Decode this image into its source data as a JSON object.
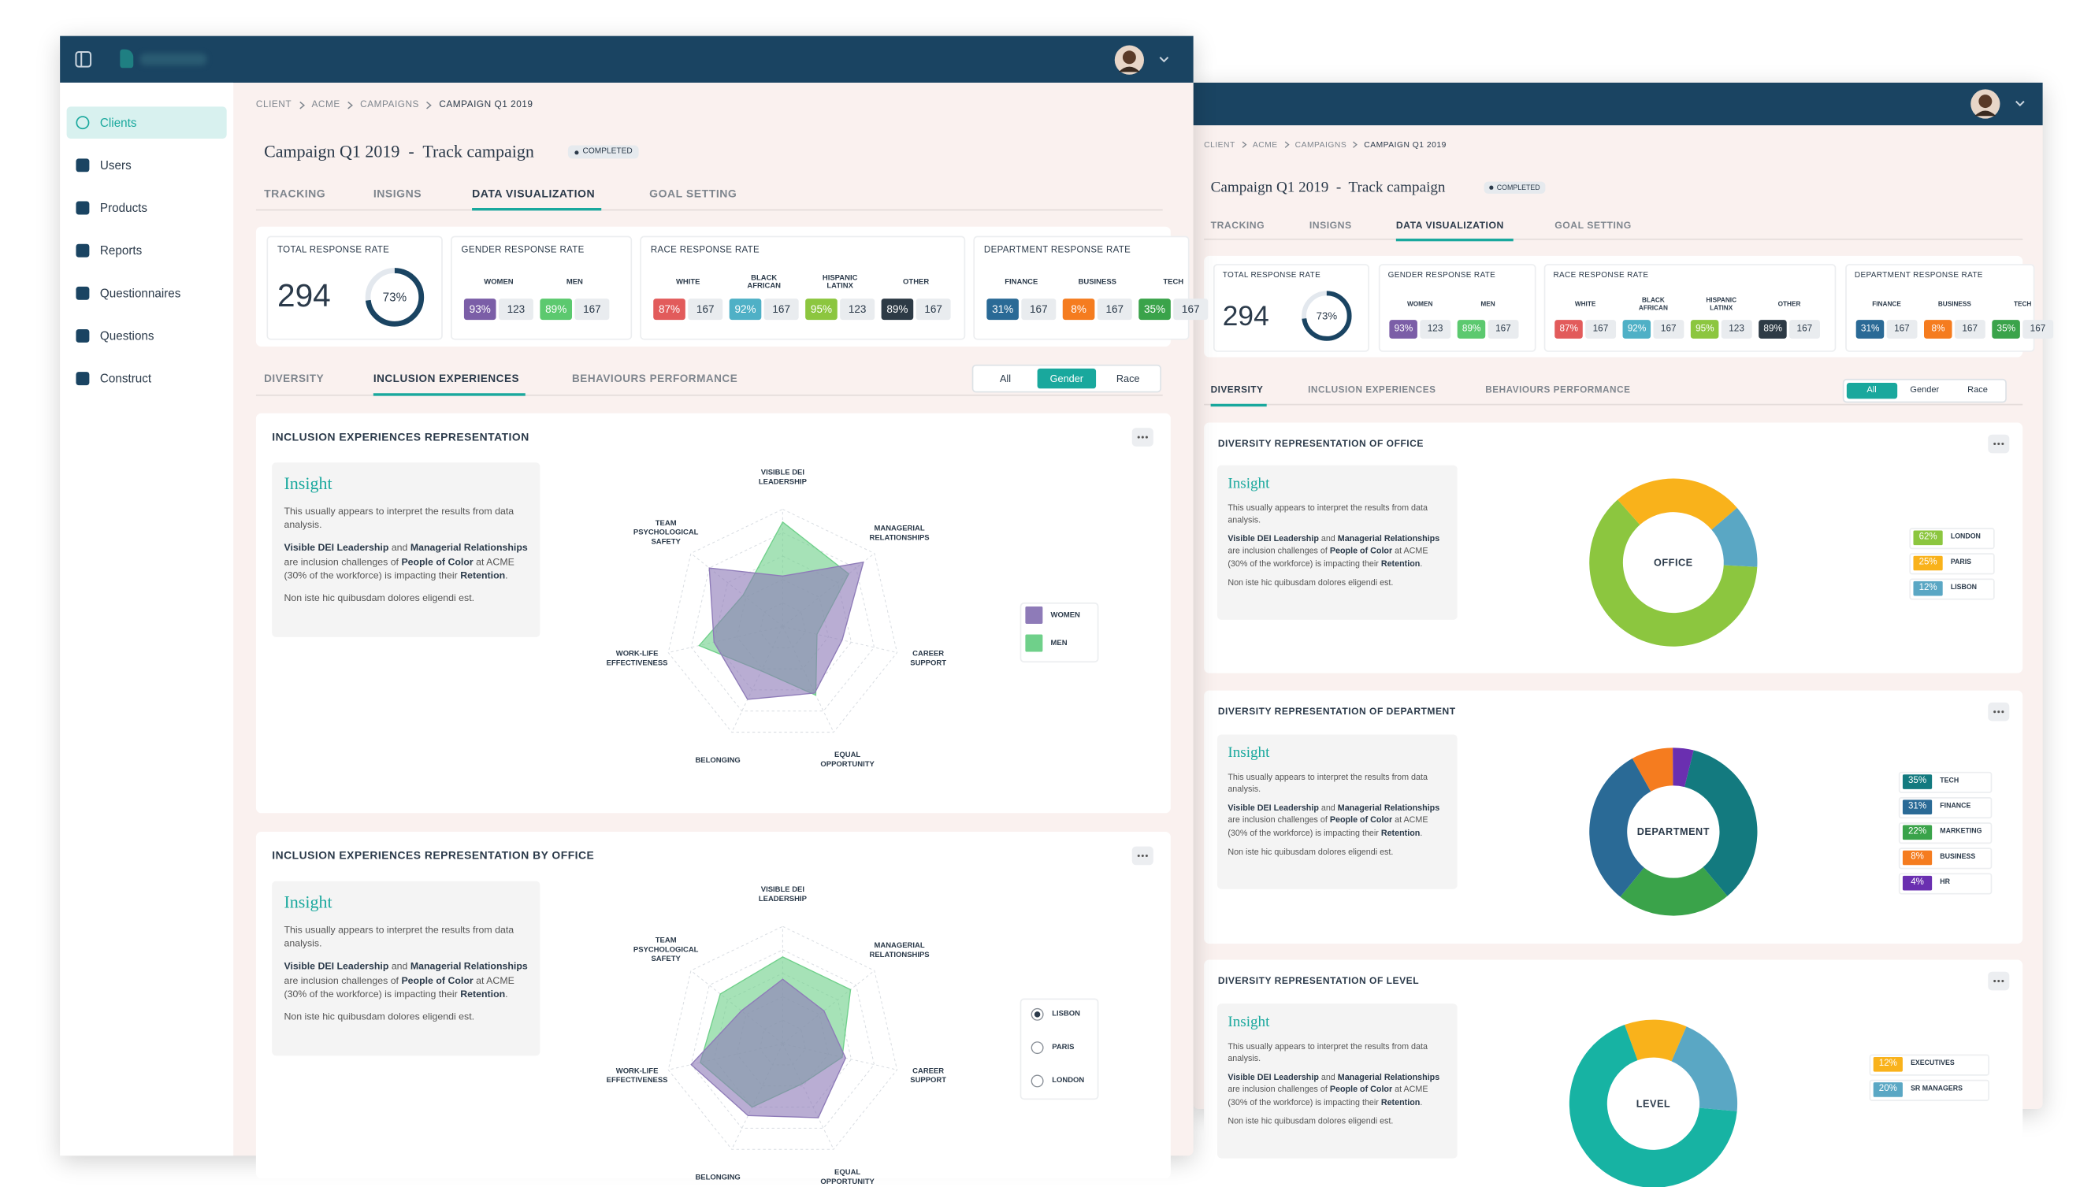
{
  "app": {
    "sidebar": [
      "Clients",
      "Users",
      "Products",
      "Reports",
      "Questionnaires",
      "Questions",
      "Construct"
    ],
    "breadcrumb": [
      "CLIENT",
      "ACME",
      "CAMPAIGNS",
      "CAMPAIGN Q1 2019"
    ],
    "campaign_title": "Campaign Q1 2019  -  Track campaign",
    "status": "COMPLETED",
    "tabs": [
      "TRACKING",
      "INSIGNS",
      "DATA VISUALIZATION",
      "GOAL SETTING"
    ],
    "subtabs": [
      "DIVERSITY",
      "INCLUSION EXPERIENCES",
      "BEHAVIOURS PERFORMANCE"
    ],
    "filters": [
      "All",
      "Gender",
      "Race"
    ],
    "stats": {
      "total": {
        "label": "TOTAL RESPONSE RATE",
        "count": 294,
        "rate": 73,
        "rate_label": "73%"
      },
      "groups": [
        {
          "label": "GENDER RESPONSE RATE",
          "items": [
            {
              "name": [
                "WOMEN"
              ],
              "rate": "93%",
              "count": 123,
              "color": "#7b5ea7"
            },
            {
              "name": [
                "MEN"
              ],
              "rate": "89%",
              "count": 167,
              "color": "#5cc96f"
            }
          ]
        },
        {
          "label": "RACE RESPONSE RATE",
          "items": [
            {
              "name": [
                "WHITE"
              ],
              "rate": "87%",
              "count": 167,
              "color": "#e25b5b"
            },
            {
              "name": [
                "BLACK",
                "AFRICAN"
              ],
              "rate": "92%",
              "count": 167,
              "color": "#4fb0c6"
            },
            {
              "name": [
                "HISPANIC",
                "LATINX"
              ],
              "rate": "95%",
              "count": 123,
              "color": "#8cc63f"
            },
            {
              "name": [
                "OTHER"
              ],
              "rate": "89%",
              "count": 167,
              "color": "#2d3a45"
            }
          ]
        },
        {
          "label": "DEPARTMENT RESPONSE RATE",
          "items": [
            {
              "name": [
                "FINANCE"
              ],
              "rate": "31%",
              "count": 167,
              "color": "#2a6a96"
            },
            {
              "name": [
                "BUSINESS"
              ],
              "rate": "8%",
              "count": 167,
              "color": "#f57c1f"
            },
            {
              "name": [
                "TECH"
              ],
              "rate": "35%",
              "count": 167,
              "color": "#3aa34a"
            }
          ]
        }
      ]
    },
    "insight": {
      "heading": "Insight",
      "intro": "This usually appears to interpret the results from data analysis.",
      "segments": [
        "Visible DEI Leadership",
        " and ",
        "Managerial Relationships",
        " are inclusion challenges of ",
        "People of Color",
        " at ACME (30% of the workforce) is impacting their ",
        "Retention",
        "."
      ],
      "outro": "Non iste hic quibusdam dolores eligendi est."
    }
  },
  "windows": [
    {
      "tab_active": 2,
      "subtab_active": 1,
      "filter_active": 1
    },
    {
      "tab_active": 2,
      "subtab_active": 0,
      "filter_active": 0
    }
  ],
  "left_panels": [
    {
      "title": "INCLUSION EXPERIENCES REPRESENTATION",
      "chart": {
        "type": "radar",
        "axes": [
          [
            "VISIBLE DEI",
            "LEADERSHIP"
          ],
          [
            "MANAGERIAL",
            "RELATIONSHIPS"
          ],
          [
            "CAREER",
            "SUPPORT"
          ],
          [
            "EQUAL",
            "OPPORTUNITY"
          ],
          [
            "BELONGING"
          ],
          [
            "WORK-LIFE",
            "EFFECTIVENESS"
          ],
          [
            "TEAM",
            "PSYCHOLOGICAL",
            "SAFETY"
          ]
        ],
        "rlim": [
          0,
          100
        ],
        "rticks": [
          20,
          40,
          60,
          80,
          100
        ],
        "series": [
          {
            "name": "WOMEN",
            "color": "#8e7bb8",
            "values": [
              43,
              88,
              52,
              63,
              69,
              60,
              80
            ]
          },
          {
            "name": "MEN",
            "color": "#6fd08a",
            "values": [
              89,
              72,
              30,
              65,
              42,
              73,
              43
            ]
          }
        ]
      }
    },
    {
      "title": "INCLUSION EXPERIENCES REPRESENTATION BY OFFICE",
      "chart": {
        "type": "radar",
        "axes": [
          [
            "VISIBLE DEI",
            "LEADERSHIP"
          ],
          [
            "MANAGERIAL",
            "RELATIONSHIPS"
          ],
          [
            "CAREER",
            "SUPPORT"
          ],
          [
            "EQUAL",
            "OPPORTUNITY"
          ],
          [
            "BELONGING"
          ],
          [
            "WORK-LIFE",
            "EFFECTIVENESS"
          ],
          [
            "TEAM",
            "PSYCHOLOGICAL",
            "SAFETY"
          ]
        ],
        "rlim": [
          0,
          100
        ],
        "rticks": [
          20,
          40,
          60,
          80,
          100
        ],
        "series": [
          {
            "color": "#8e7bb8",
            "values": [
              55,
              45,
              55,
              70,
              68,
              80,
              45
            ]
          },
          {
            "color": "#6fd08a",
            "values": [
              74,
              74,
              52,
              38,
              60,
              72,
              68
            ]
          }
        ],
        "options": [
          "LISBON",
          "PARIS",
          "LONDON"
        ],
        "selected": 0
      }
    }
  ],
  "right_panels": [
    {
      "title": "DIVERSITY REPRESENTATION OF OFFICE",
      "chart": {
        "type": "donut",
        "center_label": "OFFICE",
        "categories": [
          "LONDON",
          "PARIS",
          "LISBON"
        ],
        "values": [
          62,
          25,
          12
        ],
        "value_labels": [
          "62%",
          "25%",
          "12%"
        ],
        "colors": [
          "#8cc63f",
          "#f9b21b",
          "#5aa7c4"
        ]
      }
    },
    {
      "title": "DIVERSITY REPRESENTATION OF DEPARTMENT",
      "chart": {
        "type": "donut",
        "center_label": "DEPARTMENT",
        "categories": [
          "TECH",
          "FINANCE",
          "MARKETING",
          "BUSINESS",
          "HR"
        ],
        "values": [
          35,
          31,
          22,
          8,
          4
        ],
        "value_labels": [
          "35%",
          "31%",
          "22%",
          "8%",
          "4%"
        ],
        "colors": [
          "#137a7f",
          "#2a6a96",
          "#3aa34a",
          "#f57c1f",
          "#6a2fb0"
        ]
      }
    },
    {
      "title": "DIVERSITY REPRESENTATION OF LEVEL",
      "chart": {
        "type": "donut",
        "center_label": "LEVEL",
        "categories": [
          "EXECUTIVES",
          "SR MANAGERS",
          null
        ],
        "values": [
          12,
          20,
          68
        ],
        "value_labels": [
          "12%",
          "20%",
          null
        ],
        "colors": [
          "#f9b21b",
          "#5aa7c4",
          "#17b3a3"
        ]
      }
    }
  ]
}
